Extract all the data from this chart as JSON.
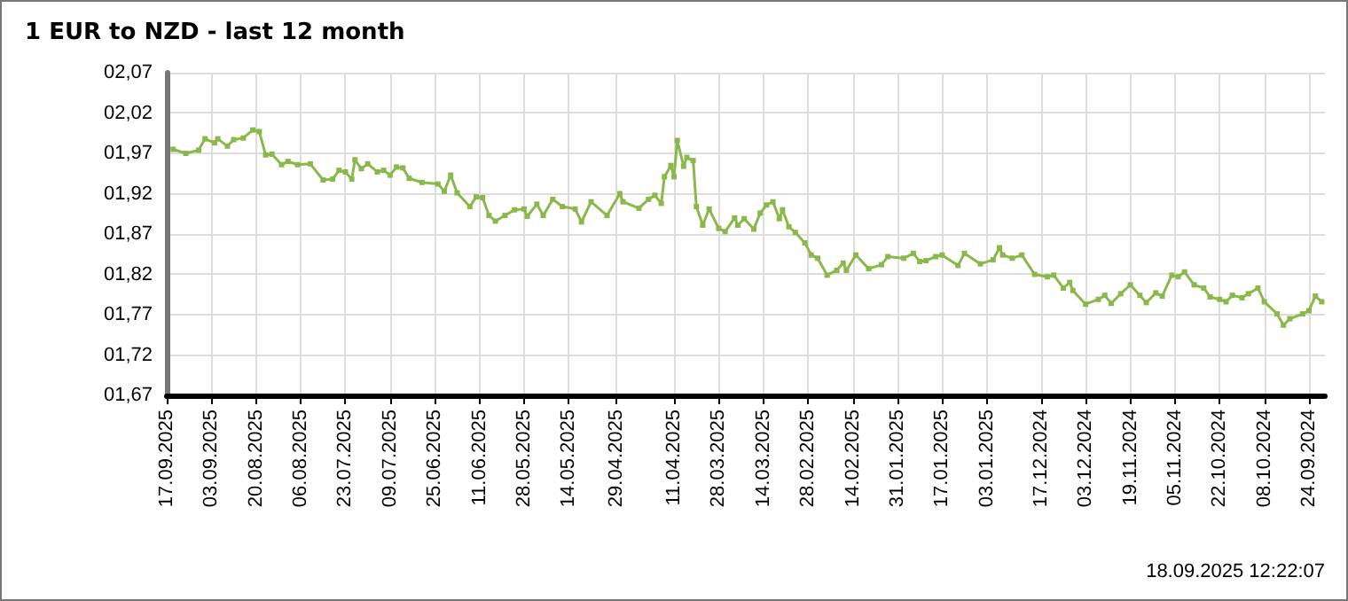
{
  "chart_data": {
    "type": "line",
    "title": "1 EUR to NZD - last 12 month",
    "annotations": [
      "18.09.2025 12:22:07"
    ],
    "x": [
      "2025-09-15",
      "2025-09-11",
      "2025-09-07",
      "2025-09-05",
      "2025-09-02",
      "2025-09-01",
      "2025-08-29",
      "2025-08-27",
      "2025-08-24",
      "2025-08-21",
      "2025-08-19",
      "2025-08-17",
      "2025-08-15",
      "2025-08-12",
      "2025-08-10",
      "2025-08-07",
      "2025-08-03",
      "2025-07-30",
      "2025-07-27",
      "2025-07-25",
      "2025-07-23",
      "2025-07-21",
      "2025-07-20",
      "2025-07-18",
      "2025-07-16",
      "2025-07-13",
      "2025-07-11",
      "2025-07-09",
      "2025-07-07",
      "2025-07-05",
      "2025-07-03",
      "2025-06-29",
      "2025-06-24",
      "2025-06-22",
      "2025-06-20",
      "2025-06-18",
      "2025-06-14",
      "2025-06-12",
      "2025-06-10",
      "2025-06-08",
      "2025-06-06",
      "2025-06-03",
      "2025-05-31",
      "2025-05-28",
      "2025-05-27",
      "2025-05-24",
      "2025-05-22",
      "2025-05-19",
      "2025-05-16",
      "2025-05-12",
      "2025-05-10",
      "2025-05-07",
      "2025-05-02",
      "2025-04-28",
      "2025-04-27",
      "2025-04-22",
      "2025-04-19",
      "2025-04-17",
      "2025-04-15",
      "2025-04-14",
      "2025-04-12",
      "2025-04-11",
      "2025-04-10",
      "2025-04-08",
      "2025-04-07",
      "2025-04-05",
      "2025-04-04",
      "2025-04-02",
      "2025-03-31",
      "2025-03-28",
      "2025-03-26",
      "2025-03-23",
      "2025-03-22",
      "2025-03-20",
      "2025-03-17",
      "2025-03-15",
      "2025-03-13",
      "2025-03-11",
      "2025-03-09",
      "2025-03-08",
      "2025-03-06",
      "2025-03-04",
      "2025-03-01",
      "2025-02-27",
      "2025-02-25",
      "2025-02-22",
      "2025-02-19",
      "2025-02-17",
      "2025-02-16",
      "2025-02-13",
      "2025-02-09",
      "2025-02-05",
      "2025-02-03",
      "2025-01-29",
      "2025-01-26",
      "2025-01-24",
      "2025-01-22",
      "2025-01-19",
      "2025-01-17",
      "2025-01-12",
      "2025-01-10",
      "2025-01-05",
      "2025-01-01",
      "2024-12-30",
      "2024-12-29",
      "2024-12-26",
      "2024-12-23",
      "2024-12-19",
      "2024-12-15",
      "2024-12-13",
      "2024-12-10",
      "2024-12-08",
      "2024-12-07",
      "2024-12-03",
      "2024-11-29",
      "2024-11-27",
      "2024-11-25",
      "2024-11-22",
      "2024-11-19",
      "2024-11-16",
      "2024-11-14",
      "2024-11-11",
      "2024-11-09",
      "2024-11-06",
      "2024-11-04",
      "2024-11-02",
      "2024-10-30",
      "2024-10-27",
      "2024-10-25",
      "2024-10-22",
      "2024-10-20",
      "2024-10-18",
      "2024-10-15",
      "2024-10-13",
      "2024-10-10",
      "2024-10-08",
      "2024-10-04",
      "2024-10-02",
      "2024-09-30",
      "2024-09-26",
      "2024-09-24",
      "2024-09-22",
      "2024-09-20"
    ],
    "series": [
      {
        "color": "#8bb84a",
        "values": [
          1.975,
          1.97,
          1.974,
          1.988,
          1.983,
          1.988,
          1.979,
          1.987,
          1.989,
          1.999,
          1.997,
          1.968,
          1.969,
          1.956,
          1.96,
          1.956,
          1.957,
          1.937,
          1.938,
          1.949,
          1.947,
          1.938,
          1.962,
          1.951,
          1.957,
          1.947,
          1.949,
          1.943,
          1.953,
          1.952,
          1.939,
          1.934,
          1.932,
          1.923,
          1.943,
          1.921,
          1.904,
          1.916,
          1.915,
          1.893,
          1.886,
          1.893,
          1.9,
          1.901,
          1.892,
          1.907,
          1.893,
          1.913,
          1.904,
          1.901,
          1.885,
          1.91,
          1.893,
          1.92,
          1.91,
          1.902,
          1.913,
          1.918,
          1.908,
          1.941,
          1.955,
          1.941,
          1.986,
          1.954,
          1.965,
          1.961,
          1.904,
          1.881,
          1.901,
          1.877,
          1.873,
          1.89,
          1.881,
          1.889,
          1.876,
          1.896,
          1.906,
          1.91,
          1.889,
          1.9,
          1.879,
          1.872,
          1.859,
          1.844,
          1.84,
          1.819,
          1.825,
          1.834,
          1.825,
          1.844,
          1.827,
          1.832,
          1.842,
          1.84,
          1.846,
          1.836,
          1.837,
          1.842,
          1.844,
          1.831,
          1.846,
          1.833,
          1.838,
          1.853,
          1.844,
          1.84,
          1.844,
          1.82,
          1.817,
          1.819,
          1.803,
          1.81,
          1.8,
          1.783,
          1.789,
          1.794,
          1.784,
          1.796,
          1.807,
          1.794,
          1.785,
          1.797,
          1.793,
          1.819,
          1.817,
          1.823,
          1.807,
          1.803,
          1.792,
          1.789,
          1.786,
          1.794,
          1.791,
          1.796,
          1.803,
          1.786,
          1.771,
          1.757,
          1.765,
          1.771,
          1.775,
          1.793,
          1.786
        ]
      }
    ],
    "xlim": [
      "2025-09-17",
      "2024-09-19"
    ],
    "xticks": [
      {
        "value": "2025-09-17",
        "label": "17.09.2025"
      },
      {
        "value": "2025-09-03",
        "label": "03.09.2025"
      },
      {
        "value": "2025-08-20",
        "label": "20.08.2025"
      },
      {
        "value": "2025-08-06",
        "label": "06.08.2025"
      },
      {
        "value": "2025-07-23",
        "label": "23.07.2025"
      },
      {
        "value": "2025-07-09",
        "label": "09.07.2025"
      },
      {
        "value": "2025-06-25",
        "label": "25.06.2025"
      },
      {
        "value": "2025-06-11",
        "label": "11.06.2025"
      },
      {
        "value": "2025-05-28",
        "label": "28.05.2025"
      },
      {
        "value": "2025-05-14",
        "label": "14.05.2025"
      },
      {
        "value": "2025-04-29",
        "label": "29.04.2025"
      },
      {
        "value": "2025-04-11",
        "label": "11.04.2025"
      },
      {
        "value": "2025-03-28",
        "label": "28.03.2025"
      },
      {
        "value": "2025-03-14",
        "label": "14.03.2025"
      },
      {
        "value": "2025-02-28",
        "label": "28.02.2025"
      },
      {
        "value": "2025-02-14",
        "label": "14.02.2025"
      },
      {
        "value": "2025-01-31",
        "label": "31.01.2025"
      },
      {
        "value": "2025-01-17",
        "label": "17.01.2025"
      },
      {
        "value": "2025-01-03",
        "label": "03.01.2025"
      },
      {
        "value": "2024-12-17",
        "label": "17.12.2024"
      },
      {
        "value": "2024-12-03",
        "label": "03.12.2024"
      },
      {
        "value": "2024-11-19",
        "label": "19.11.2024"
      },
      {
        "value": "2024-11-05",
        "label": "05.11.2024"
      },
      {
        "value": "2024-10-22",
        "label": "22.10.2024"
      },
      {
        "value": "2024-10-08",
        "label": "08.10.2024"
      },
      {
        "value": "2024-09-24",
        "label": "24.09.2024"
      }
    ],
    "ylim": [
      1.67,
      2.07
    ],
    "yticks": [
      {
        "value": 1.67,
        "label": "01,67"
      },
      {
        "value": 1.72,
        "label": "01,72"
      },
      {
        "value": 1.77,
        "label": "01,77"
      },
      {
        "value": 1.82,
        "label": "01,82"
      },
      {
        "value": 1.87,
        "label": "01,87"
      },
      {
        "value": 1.92,
        "label": "01,92"
      },
      {
        "value": 1.97,
        "label": "01,97"
      },
      {
        "value": 2.02,
        "label": "02,02"
      },
      {
        "value": 2.07,
        "label": "02,07"
      }
    ],
    "grid": true,
    "marker": "square",
    "line_style": "solid"
  }
}
